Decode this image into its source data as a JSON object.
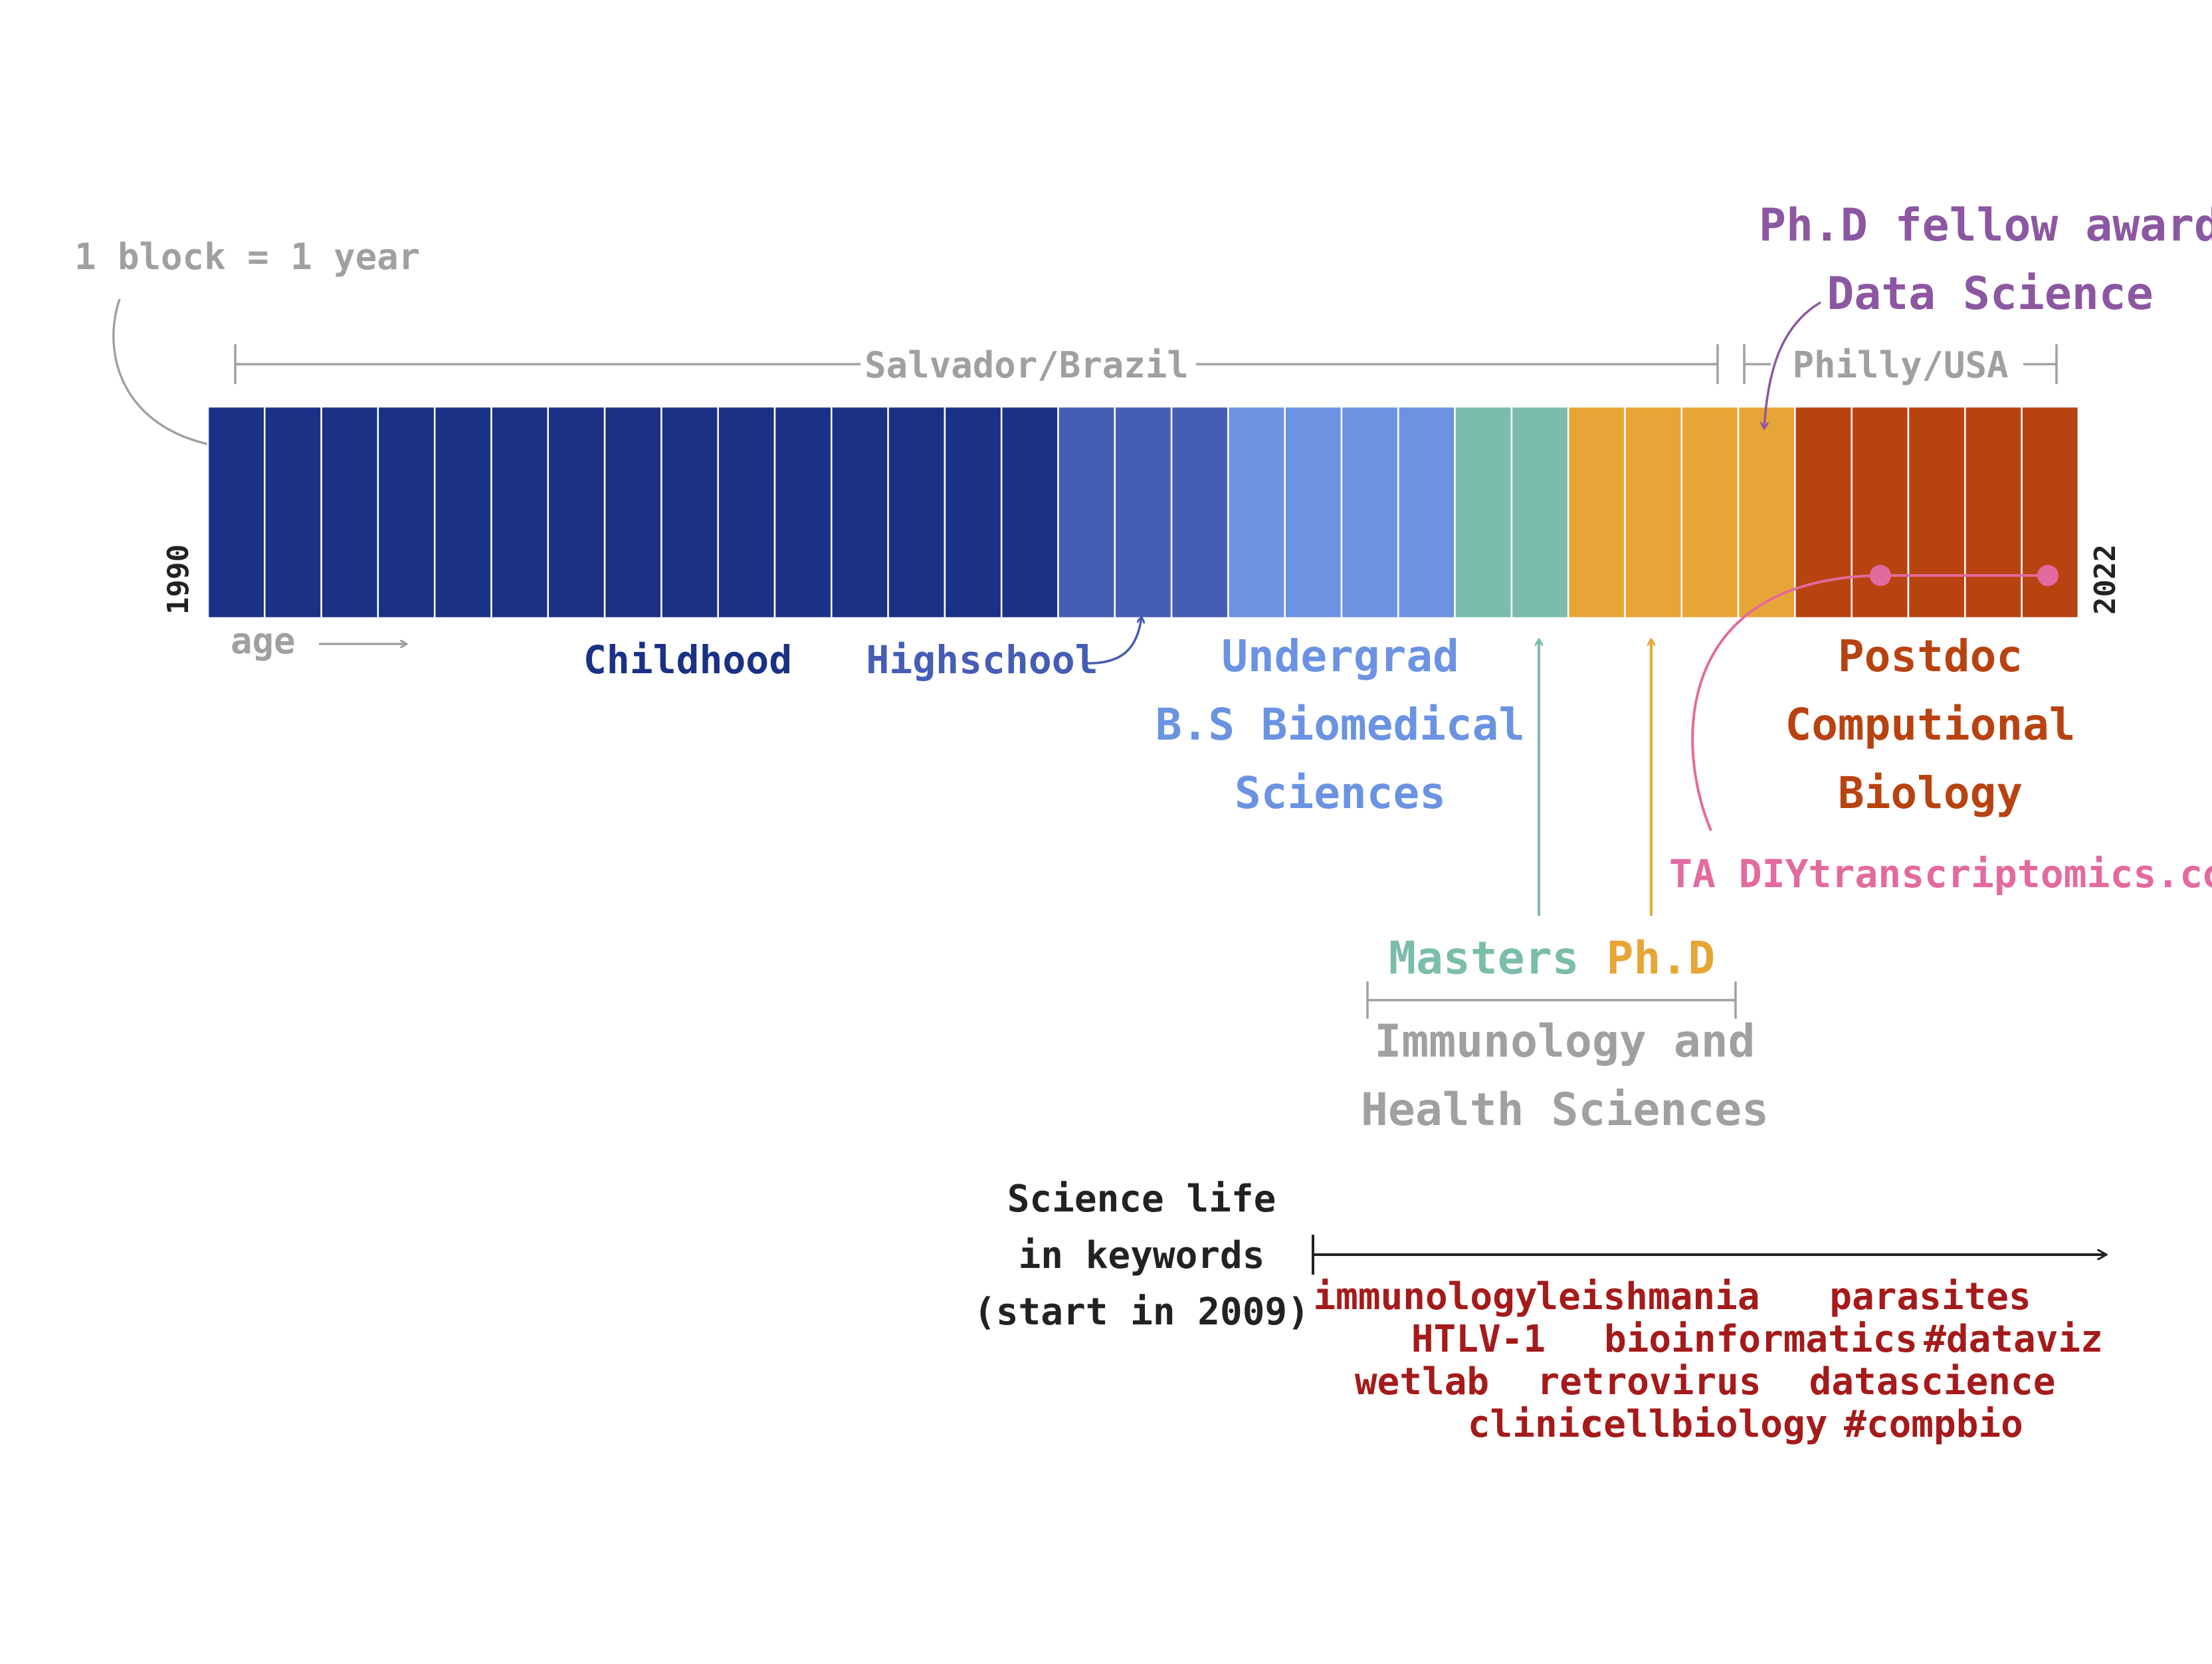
{
  "legend": {
    "scale_note": "1 block = 1 year",
    "age_label": "age"
  },
  "years": {
    "start": "1990",
    "end": "2022"
  },
  "locations": [
    {
      "label": "Salvador/Brazil"
    },
    {
      "label": "Philly/USA"
    }
  ],
  "colors": {
    "childhood": "#1a3185",
    "highschool": "#455db5",
    "undergrad": "#6b93e2",
    "masters": "#7abdaa",
    "phd": "#e8a537",
    "postdoc": "#b84310",
    "award": "#8c57a1",
    "ta": "#e36a9e",
    "keywords": "#a51a1a",
    "muted": "#a0a0a0",
    "ink": "#222222"
  },
  "phases": [
    {
      "key": "childhood",
      "years": 15,
      "label": "Childhood"
    },
    {
      "key": "highschool",
      "years": 3,
      "label": "Highschool"
    },
    {
      "key": "undergrad",
      "years": 4,
      "lines": [
        "Undergrad",
        "B.S Biomedical",
        "Sciences"
      ]
    },
    {
      "key": "masters",
      "years": 2,
      "label": "Masters"
    },
    {
      "key": "phd",
      "years": 4,
      "label": "Ph.D"
    },
    {
      "key": "postdoc",
      "years": 5,
      "lines": [
        "Postdoc",
        "Computional",
        "Biology"
      ]
    }
  ],
  "graduate_program": [
    "Immunology and",
    "Health Sciences"
  ],
  "award": [
    "Ph.D fellow award",
    "Data Science"
  ],
  "ta": "TA DIYtranscriptomics.com",
  "keywords_section": {
    "title_lines": [
      "Science life",
      "in keywords",
      "(start in 2009)"
    ],
    "rows": [
      [
        "immunology",
        "leishmania",
        "parasites"
      ],
      [
        "HTLV-1",
        "bioinformatics",
        "#dataviz"
      ],
      [
        "wetlab",
        "retrovirus",
        "datascience"
      ],
      [
        "clinic",
        "cellbiology",
        "#compbio"
      ]
    ]
  }
}
